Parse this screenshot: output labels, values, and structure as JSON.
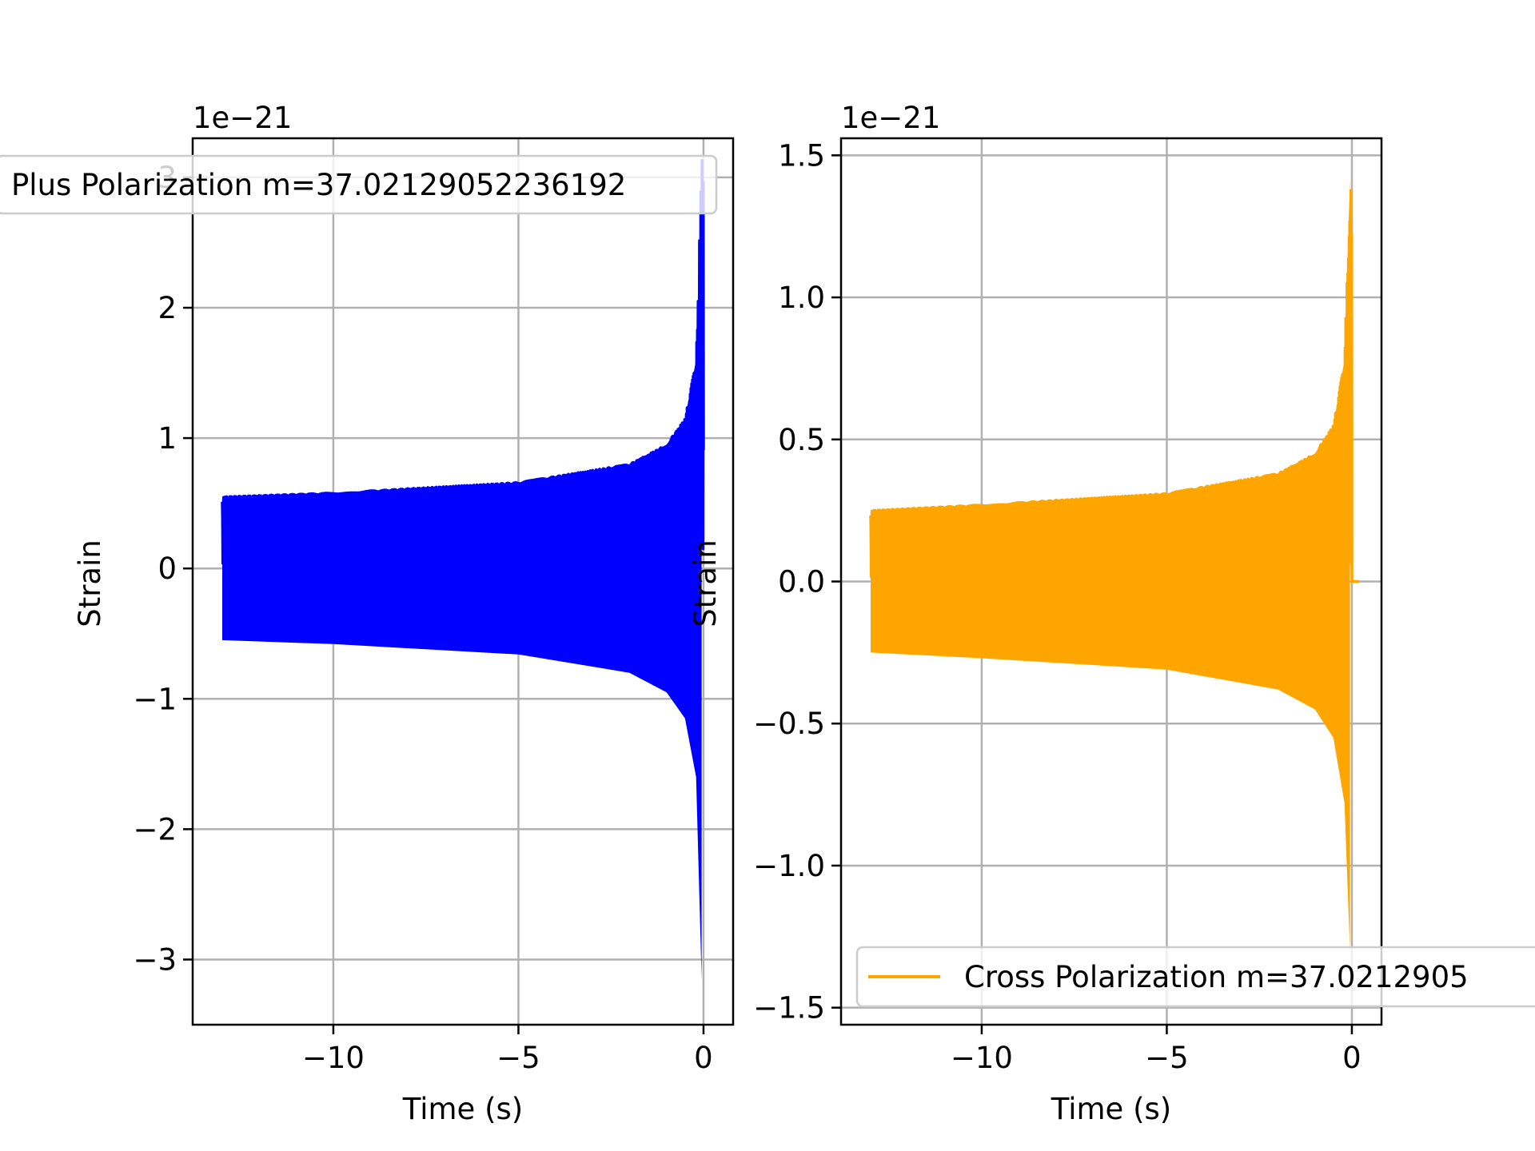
{
  "chart_data": [
    {
      "type": "line",
      "xlabel": "Time (s)",
      "ylabel": "Strain",
      "offset_text": "1e−21",
      "xlim": [
        -13.8,
        0.8
      ],
      "ylim": [
        -3.5,
        3.3
      ],
      "x_ticks": [
        -10,
        -5,
        0
      ],
      "x_tick_labels": [
        "−10",
        "−5",
        "0"
      ],
      "y_ticks": [
        -3,
        -2,
        -1,
        0,
        1,
        2,
        3
      ],
      "y_tick_labels": [
        "−3",
        "−2",
        "−1",
        "0",
        "1",
        "2",
        "3"
      ],
      "grid": true,
      "legend": {
        "placement": "upper-left",
        "entries": [
          "Plus Polarization m=37.02129052236192"
        ]
      },
      "series": [
        {
          "name": "Plus Polarization m=37.02129052236192",
          "color": "#0000ff",
          "t_start": -13.0,
          "t_end": 0.0,
          "envelope_upper": [
            [
              -13.0,
              0.55
            ],
            [
              -10.0,
              0.58
            ],
            [
              -5.0,
              0.66
            ],
            [
              -2.0,
              0.8
            ],
            [
              -1.0,
              0.95
            ],
            [
              -0.5,
              1.15
            ],
            [
              -0.2,
              1.6
            ],
            [
              -0.05,
              2.6
            ]
          ],
          "envelope_lower": [
            [
              -13.0,
              -0.55
            ],
            [
              -10.0,
              -0.58
            ],
            [
              -5.0,
              -0.66
            ],
            [
              -2.0,
              -0.8
            ],
            [
              -1.0,
              -0.95
            ],
            [
              -0.5,
              -1.15
            ],
            [
              -0.2,
              -1.6
            ],
            [
              -0.05,
              -3.15
            ]
          ]
        }
      ]
    },
    {
      "type": "line",
      "xlabel": "Time (s)",
      "ylabel": "Strain",
      "offset_text": "1e−21",
      "xlim": [
        -13.8,
        0.8
      ],
      "ylim": [
        -1.56,
        1.56
      ],
      "x_ticks": [
        -10,
        -5,
        0
      ],
      "x_tick_labels": [
        "−10",
        "−5",
        "0"
      ],
      "y_ticks": [
        -1.5,
        -1.0,
        -0.5,
        0.0,
        0.5,
        1.0,
        1.5
      ],
      "y_tick_labels": [
        "−1.5",
        "−1.0",
        "−0.5",
        "0.0",
        "0.5",
        "1.0",
        "1.5"
      ],
      "grid": true,
      "legend": {
        "placement": "lower-right",
        "entries": [
          "Cross Polarization m=37.0212905"
        ]
      },
      "series": [
        {
          "name": "Cross Polarization m=37.0212905",
          "color": "#ffa500",
          "t_start": -13.0,
          "t_end": 0.2,
          "envelope_upper": [
            [
              -13.0,
              0.25
            ],
            [
              -10.0,
              0.27
            ],
            [
              -5.0,
              0.31
            ],
            [
              -2.0,
              0.38
            ],
            [
              -1.0,
              0.45
            ],
            [
              -0.5,
              0.55
            ],
            [
              -0.2,
              0.78
            ],
            [
              -0.05,
              1.42
            ]
          ],
          "envelope_lower": [
            [
              -13.0,
              -0.25
            ],
            [
              -10.0,
              -0.27
            ],
            [
              -5.0,
              -0.31
            ],
            [
              -2.0,
              -0.38
            ],
            [
              -1.0,
              -0.45
            ],
            [
              -0.5,
              -0.55
            ],
            [
              -0.2,
              -0.78
            ],
            [
              -0.05,
              -1.3
            ]
          ]
        }
      ]
    }
  ]
}
